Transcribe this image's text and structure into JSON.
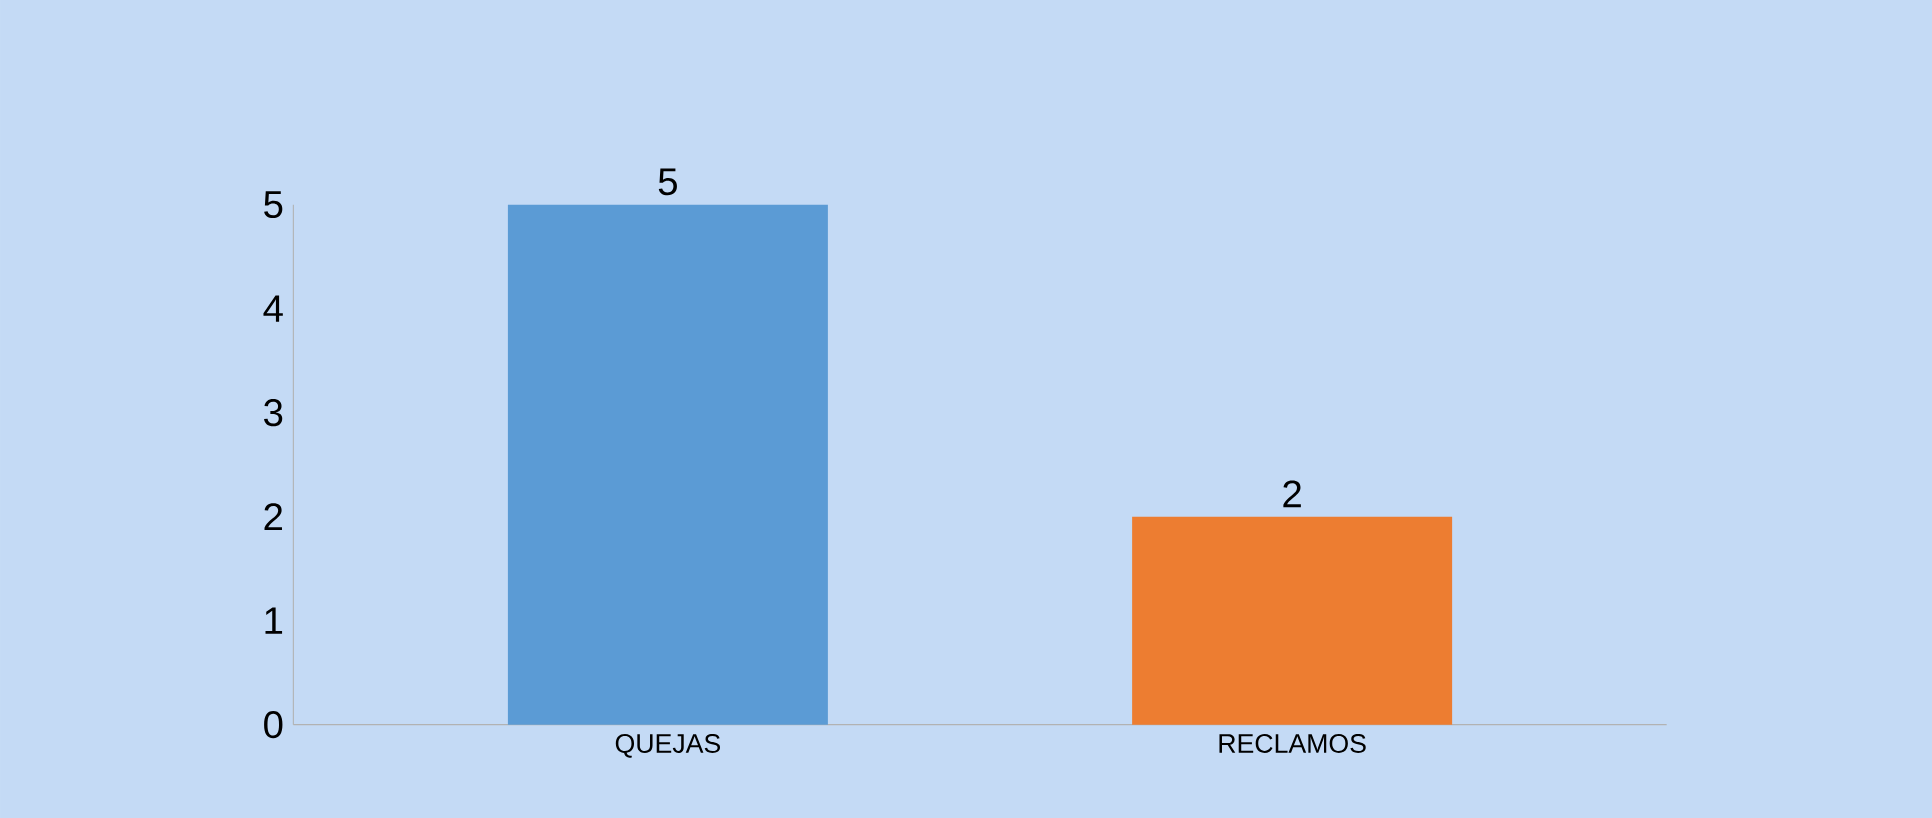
{
  "chart_data": {
    "type": "bar",
    "categories": [
      "QUEJAS",
      "RECLAMOS"
    ],
    "values": [
      5,
      2
    ],
    "colors": [
      "#5b9bd5",
      "#ed7d31"
    ],
    "ylim": [
      0,
      5
    ],
    "yticks": [
      0,
      1,
      2,
      3,
      4,
      5
    ],
    "data_labels": true
  }
}
